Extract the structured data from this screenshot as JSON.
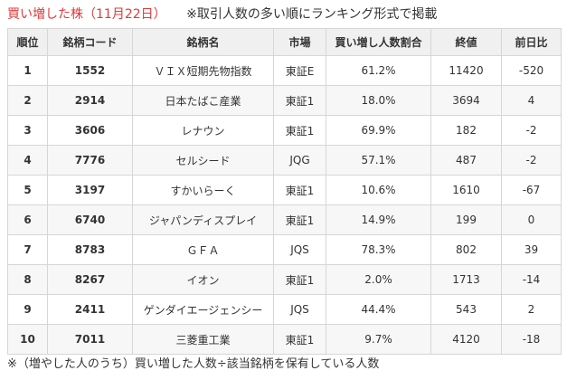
{
  "header": {
    "title": "買い増した株（11月22日）",
    "subtitle": "※取引人数の多い順にランキング形式で掲載"
  },
  "table": {
    "columns": [
      "順位",
      "銘柄コード",
      "銘柄名",
      "市場",
      "買い増し人数割合",
      "終値",
      "前日比"
    ],
    "rows": [
      {
        "rank": "1",
        "code": "1552",
        "name": "ＶＩＸ短期先物指数",
        "market": "東証E",
        "ratio": "61.2%",
        "close": "11420",
        "change": "-520"
      },
      {
        "rank": "2",
        "code": "2914",
        "name": "日本たばこ産業",
        "market": "東証1",
        "ratio": "18.0%",
        "close": "3694",
        "change": "4"
      },
      {
        "rank": "3",
        "code": "3606",
        "name": "レナウン",
        "market": "東証1",
        "ratio": "69.9%",
        "close": "182",
        "change": "-2"
      },
      {
        "rank": "4",
        "code": "7776",
        "name": "セルシード",
        "market": "JQG",
        "ratio": "57.1%",
        "close": "487",
        "change": "-2"
      },
      {
        "rank": "5",
        "code": "3197",
        "name": "すかいらーく",
        "market": "東証1",
        "ratio": "10.6%",
        "close": "1610",
        "change": "-67"
      },
      {
        "rank": "6",
        "code": "6740",
        "name": "ジャパンディスプレイ",
        "market": "東証1",
        "ratio": "14.9%",
        "close": "199",
        "change": "0"
      },
      {
        "rank": "7",
        "code": "8783",
        "name": "ＧＦＡ",
        "market": "JQS",
        "ratio": "78.3%",
        "close": "802",
        "change": "39"
      },
      {
        "rank": "8",
        "code": "8267",
        "name": "イオン",
        "market": "東証1",
        "ratio": "2.0%",
        "close": "1713",
        "change": "-14"
      },
      {
        "rank": "9",
        "code": "2411",
        "name": "ゲンダイエージェンシー",
        "market": "JQS",
        "ratio": "44.4%",
        "close": "543",
        "change": "2"
      },
      {
        "rank": "10",
        "code": "7011",
        "name": "三菱重工業",
        "market": "東証1",
        "ratio": "9.7%",
        "close": "4120",
        "change": "-18"
      }
    ]
  },
  "footer": {
    "note": "※（増やした人のうち）買い増した人数÷該当銘柄を保有している人数"
  },
  "colors": {
    "title": "#e23a3a",
    "header_bg": "#f0f0f0",
    "border": "#d6d6d6",
    "stripe": "#f7f7f7"
  }
}
